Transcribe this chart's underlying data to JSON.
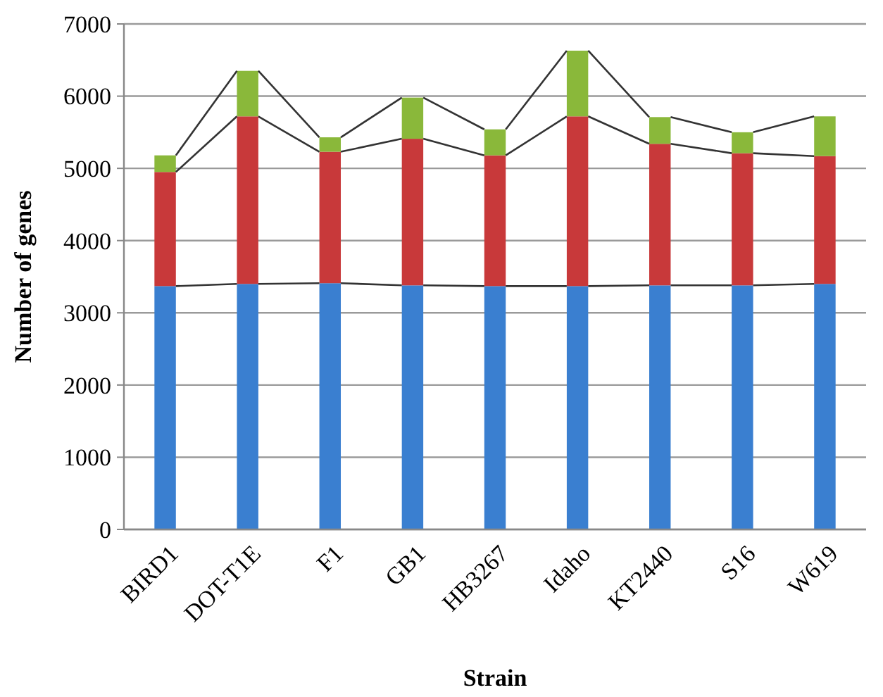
{
  "chart_data": {
    "type": "bar",
    "stacked": true,
    "xlabel": "Strain",
    "ylabel": "Number of genes",
    "categories": [
      "BIRD1",
      "DOT-T1E",
      "F1",
      "GB1",
      "HB3267",
      "Idaho",
      "KT2440",
      "S16",
      "W619"
    ],
    "series": [
      {
        "color": "#3a7fd0",
        "values": [
          3370,
          3400,
          3410,
          3380,
          3370,
          3370,
          3380,
          3380,
          3400
        ]
      },
      {
        "color": "#c8393a",
        "values": [
          1580,
          2320,
          1820,
          2030,
          1810,
          2350,
          1960,
          1830,
          1770
        ]
      },
      {
        "color": "#8ab83a",
        "values": [
          230,
          630,
          200,
          570,
          360,
          910,
          370,
          290,
          550
        ]
      }
    ],
    "ylim": [
      0,
      7000
    ],
    "yticks": [
      0,
      1000,
      2000,
      3000,
      4000,
      5000,
      6000,
      7000
    ],
    "grid": "y"
  }
}
